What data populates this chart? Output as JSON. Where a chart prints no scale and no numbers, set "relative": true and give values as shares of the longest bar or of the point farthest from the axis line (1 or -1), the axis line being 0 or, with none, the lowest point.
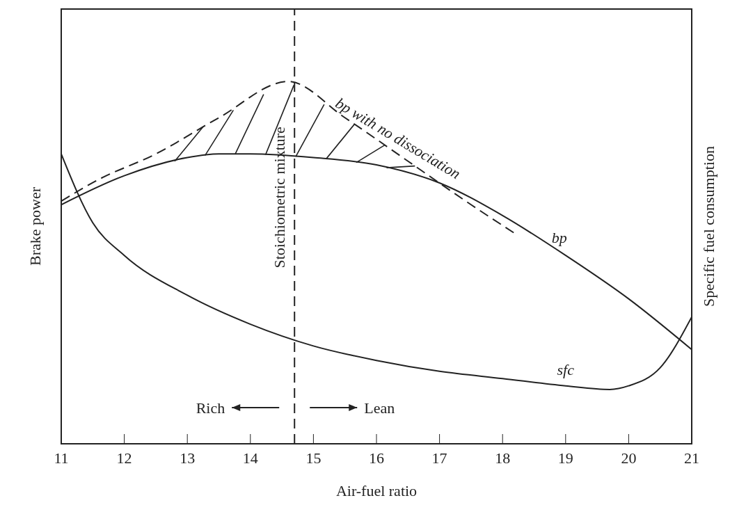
{
  "chart_data": {
    "type": "line",
    "relative": true,
    "xlabel": "Air-fuel ratio",
    "ylabel": "Brake power",
    "y2label": "Specific fuel consumption",
    "xlim": [
      11,
      21
    ],
    "xticks": [
      11,
      12,
      13,
      14,
      15,
      16,
      17,
      18,
      19,
      20,
      21
    ],
    "marker": "none",
    "series": [
      {
        "name": "bp with no dissociation",
        "color": "#222222",
        "line_style": "dashed",
        "x": [
          11,
          11.6,
          12.5,
          13.5,
          14.6,
          15.5,
          16.5,
          17.5,
          18.2
        ],
        "values": [
          0.67,
          0.73,
          0.8,
          0.9,
          1,
          0.9,
          0.78,
          0.66,
          0.58
        ]
      },
      {
        "name": "bp",
        "color": "#222222",
        "line_style": "solid",
        "x": [
          11,
          12,
          13,
          13.5,
          14,
          15,
          16,
          17,
          18,
          19,
          20,
          21
        ],
        "values": [
          0.66,
          0.74,
          0.79,
          0.8,
          0.8,
          0.79,
          0.77,
          0.72,
          0.63,
          0.52,
          0.4,
          0.26
        ]
      },
      {
        "name": "sfc",
        "color": "#222222",
        "line_style": "solid",
        "x": [
          11,
          11.5,
          12,
          13,
          14,
          15,
          16,
          17,
          18,
          19,
          19.7,
          20,
          20.5,
          21
        ],
        "values": [
          0.8,
          0.61,
          0.52,
          0.41,
          0.33,
          0.27,
          0.23,
          0.2,
          0.18,
          0.16,
          0.15,
          0.16,
          0.21,
          0.35
        ]
      }
    ],
    "ref_lines": [
      {
        "axis": "x",
        "value": 14.7,
        "label": "Stoichiometric mixture",
        "line_style": "dashed",
        "color": "#222222"
      }
    ],
    "annotations": [
      "Rich",
      "Lean"
    ]
  }
}
